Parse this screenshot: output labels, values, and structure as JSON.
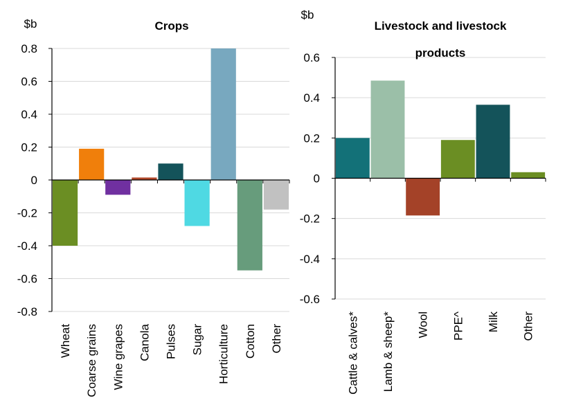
{
  "chart_data": [
    {
      "type": "bar",
      "title": "Crops",
      "ylabel": "$b",
      "ylim": [
        -0.8,
        0.9
      ],
      "yticks": [
        "0.8",
        "0.6",
        "0.4",
        "0.2",
        "0",
        "-0.2",
        "-0.4",
        "-0.6",
        "-0.8"
      ],
      "grid": true,
      "categories": [
        "Wheat",
        "Coarse grains",
        "Wine grapes",
        "Canola",
        "Pulses",
        "Sugar",
        "Horticulture",
        "Cotton",
        "Other"
      ],
      "values": [
        -0.4,
        0.19,
        -0.09,
        0.015,
        0.1,
        -0.28,
        0.8,
        -0.55,
        -0.18
      ],
      "colors": [
        "#6b8e23",
        "#f07f0b",
        "#7030a0",
        "#b0472a",
        "#14535a",
        "#4fd9e3",
        "#78a8bf",
        "#679c7c",
        "#c1c1c1"
      ]
    },
    {
      "type": "bar",
      "title": "Livestock and livestock products",
      "ylabel": "$b",
      "ylim": [
        -0.6,
        0.8
      ],
      "yticks": [
        "0.6",
        "0.4",
        "0.2",
        "0",
        "-0.2",
        "-0.4",
        "-0.6"
      ],
      "grid": true,
      "categories": [
        "Cattle & calves*",
        "Lamb & sheep*",
        "Wool",
        "PPE^",
        "Milk",
        "Other"
      ],
      "values": [
        0.2,
        0.485,
        -0.185,
        0.19,
        0.365,
        0.03
      ],
      "colors": [
        "#137178",
        "#9bbfa8",
        "#a44228",
        "#6b8e23",
        "#14535a",
        "#6b8e23"
      ]
    }
  ]
}
